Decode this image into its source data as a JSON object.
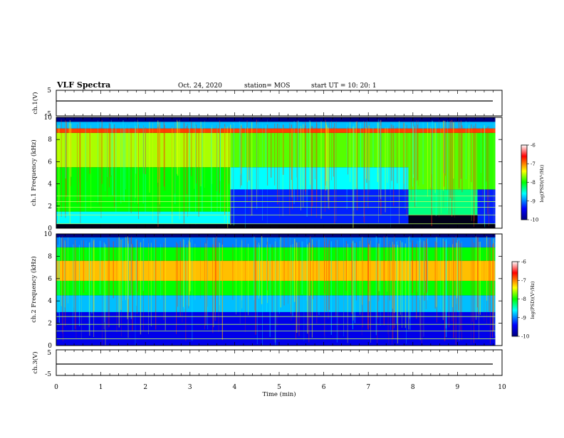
{
  "header": {
    "title": "VLF Spectra",
    "date": "Oct. 24, 2020",
    "station": "station= MOS",
    "start": "start  UT =   10: 20: 1"
  },
  "chart_data": [
    {
      "type": "line",
      "panel": "ch1-voltage",
      "ylabel": "ch.1(V)",
      "ylim": [
        -5,
        5
      ],
      "yticks": [
        "5",
        "-5"
      ],
      "series": [
        {
          "x": [
            0,
            9.85
          ],
          "values": [
            0,
            0
          ]
        }
      ]
    },
    {
      "type": "heatmap",
      "panel": "ch1-spectrogram",
      "ylabel": "ch.1 Frequency (kHz)",
      "ylim": [
        0,
        10
      ],
      "yticks": [
        "10",
        "8",
        "6",
        "4",
        "2",
        "0"
      ],
      "colorbar": {
        "label": "log(PSD)(V²/Hz)",
        "range": [
          -10,
          -6
        ],
        "ticks": [
          "-6",
          "-7",
          "-8",
          "-9",
          "-10"
        ]
      },
      "bands": [
        {
          "x": [
            0,
            3.9
          ],
          "f": [
            0.4,
            1.5
          ],
          "level": -8.6
        },
        {
          "x": [
            0,
            3.9
          ],
          "f": [
            1.5,
            5.5
          ],
          "level": -8.0
        },
        {
          "x": [
            0,
            3.9
          ],
          "f": [
            5.5,
            8.6
          ],
          "level": -7.6
        },
        {
          "x": [
            3.9,
            7.9
          ],
          "f": [
            0.4,
            3.5
          ],
          "level": -9.3
        },
        {
          "x": [
            3.9,
            7.9
          ],
          "f": [
            3.5,
            5.5
          ],
          "level": -8.6
        },
        {
          "x": [
            3.9,
            7.9
          ],
          "f": [
            5.5,
            8.6
          ],
          "level": -7.8
        },
        {
          "x": [
            7.9,
            9.45
          ],
          "f": [
            1.2,
            3.5
          ],
          "level": -8.3
        },
        {
          "x": [
            7.9,
            9.45
          ],
          "f": [
            3.5,
            8.6
          ],
          "level": -7.8
        },
        {
          "x": [
            9.45,
            9.85
          ],
          "f": [
            0.4,
            3.5
          ],
          "level": -9.3
        },
        {
          "x": [
            9.45,
            9.85
          ],
          "f": [
            3.5,
            8.6
          ],
          "level": -7.9
        },
        {
          "x": [
            0,
            9.85
          ],
          "f": [
            8.6,
            9.0
          ],
          "level": -6.8
        },
        {
          "x": [
            0,
            9.85
          ],
          "f": [
            9.0,
            9.6
          ],
          "level": -8.8
        },
        {
          "x": [
            0,
            9.85
          ],
          "f": [
            9.6,
            10
          ],
          "level": -10
        }
      ],
      "lines_khz": [
        0.4,
        1.2,
        1.9,
        2.4,
        2.9
      ]
    },
    {
      "type": "heatmap",
      "panel": "ch2-spectrogram",
      "ylabel": "ch.2 Frequency (kHz)",
      "ylim": [
        0,
        10
      ],
      "yticks": [
        "10",
        "8",
        "6",
        "4",
        "2",
        "0"
      ],
      "colorbar": {
        "label": "log(PSD)(V²/Hz)",
        "range": [
          -10,
          -6
        ],
        "ticks": [
          "-6",
          "-7",
          "-8",
          "-9",
          "-10"
        ]
      },
      "bands": [
        {
          "x": [
            0,
            9.85
          ],
          "f": [
            0,
            3.0
          ],
          "level": -9.5
        },
        {
          "x": [
            0,
            9.85
          ],
          "f": [
            3.0,
            4.5
          ],
          "level": -8.8
        },
        {
          "x": [
            0,
            9.85
          ],
          "f": [
            4.5,
            5.8
          ],
          "level": -8.0
        },
        {
          "x": [
            0,
            9.85
          ],
          "f": [
            5.8,
            7.6
          ],
          "level": -7.2
        },
        {
          "x": [
            0,
            9.85
          ],
          "f": [
            7.6,
            8.8
          ],
          "level": -8.0
        },
        {
          "x": [
            0,
            9.85
          ],
          "f": [
            8.8,
            9.7
          ],
          "level": -9.0
        },
        {
          "x": [
            0,
            9.85
          ],
          "f": [
            9.7,
            10
          ],
          "level": -10
        }
      ],
      "lines_khz": [
        0.6,
        1.3,
        1.9,
        2.6
      ]
    },
    {
      "type": "line",
      "panel": "ch3-voltage",
      "ylabel": "ch.3(V)",
      "ylim": [
        -5,
        5
      ],
      "yticks": [
        "5",
        "-5"
      ],
      "xlabel": "Time (min)",
      "xlim": [
        0,
        10
      ],
      "xticks": [
        "0",
        "1",
        "2",
        "3",
        "4",
        "5",
        "6",
        "7",
        "8",
        "9",
        "10"
      ],
      "series": [
        {
          "x": [
            0,
            9.85
          ],
          "values": [
            0,
            0
          ]
        }
      ]
    }
  ],
  "colors": {
    "low": "#000080",
    "mid": "#00ff00",
    "high": "#ff0000",
    "floor": "#000010"
  }
}
